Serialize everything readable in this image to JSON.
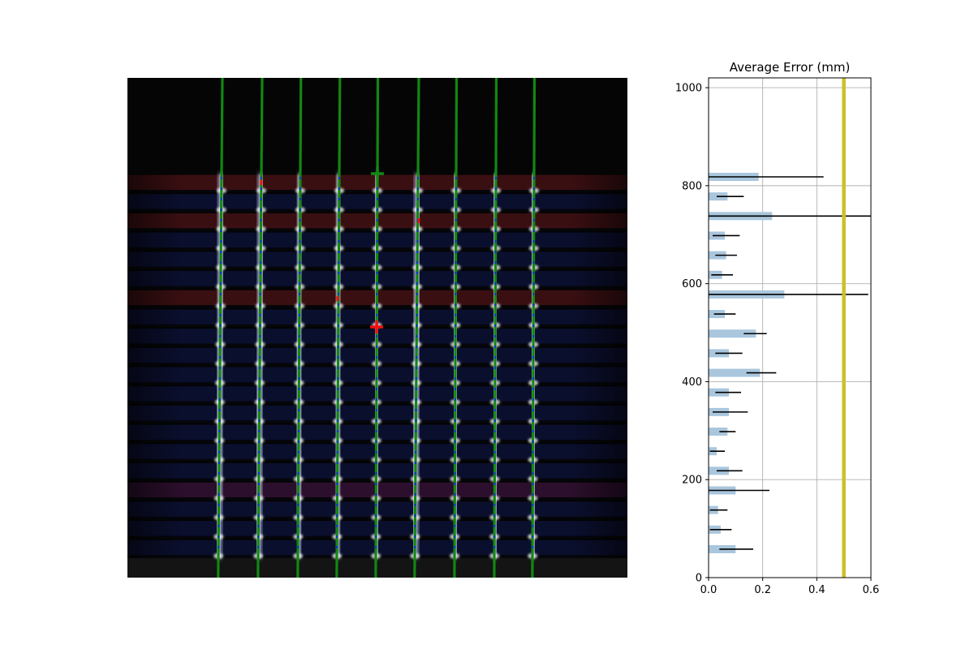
{
  "chart_data": [
    {
      "type": "image",
      "description_colors": {
        "background": "#000000",
        "grid_line_glow": "#e8ecff",
        "fit_line": "#118811",
        "dash_line": "#1133cc",
        "marker_red": "#ee1111",
        "marker_green": "#118811",
        "row_band_red": "#3a0f12",
        "row_band_blue": "#0b0f2e",
        "row_band_purple": "#2c0f2c"
      }
    },
    {
      "type": "bar",
      "orientation": "horizontal",
      "title": "Average Error (mm)",
      "xlim": [
        0,
        0.6
      ],
      "ylim": [
        0,
        1020
      ],
      "xticks": [
        "0.0",
        "0.2",
        "0.4",
        "0.6"
      ],
      "xtick_values": [
        0,
        0.2,
        0.4,
        0.6
      ],
      "yticks": [
        "0",
        "200",
        "400",
        "600",
        "800",
        "1000"
      ],
      "ytick_values": [
        0,
        200,
        400,
        600,
        800,
        1000
      ],
      "grid": true,
      "bar_color": "#a9c6dd",
      "error_color": "#000000",
      "threshold": {
        "value": 0.5,
        "color": "#c9c12a"
      },
      "bars": [
        {
          "y": 58,
          "value": 0.1,
          "err_lo": 0.04,
          "err_hi": 0.165
        },
        {
          "y": 98,
          "value": 0.045,
          "err_lo": 0.005,
          "err_hi": 0.085
        },
        {
          "y": 138,
          "value": 0.035,
          "err_lo": 0.005,
          "err_hi": 0.07
        },
        {
          "y": 178,
          "value": 0.1,
          "err_lo": 0.0,
          "err_hi": 0.225
        },
        {
          "y": 218,
          "value": 0.075,
          "err_lo": 0.03,
          "err_hi": 0.125
        },
        {
          "y": 258,
          "value": 0.03,
          "err_lo": 0.005,
          "err_hi": 0.06
        },
        {
          "y": 298,
          "value": 0.07,
          "err_lo": 0.04,
          "err_hi": 0.1
        },
        {
          "y": 338,
          "value": 0.075,
          "err_lo": 0.015,
          "err_hi": 0.145
        },
        {
          "y": 378,
          "value": 0.075,
          "err_lo": 0.025,
          "err_hi": 0.12
        },
        {
          "y": 418,
          "value": 0.19,
          "err_lo": 0.14,
          "err_hi": 0.25
        },
        {
          "y": 458,
          "value": 0.075,
          "err_lo": 0.025,
          "err_hi": 0.125
        },
        {
          "y": 498,
          "value": 0.175,
          "err_lo": 0.13,
          "err_hi": 0.215
        },
        {
          "y": 538,
          "value": 0.06,
          "err_lo": 0.02,
          "err_hi": 0.1
        },
        {
          "y": 578,
          "value": 0.28,
          "err_lo": 0.0,
          "err_hi": 0.59
        },
        {
          "y": 618,
          "value": 0.05,
          "err_lo": 0.01,
          "err_hi": 0.09
        },
        {
          "y": 658,
          "value": 0.065,
          "err_lo": 0.025,
          "err_hi": 0.105
        },
        {
          "y": 698,
          "value": 0.06,
          "err_lo": 0.015,
          "err_hi": 0.115
        },
        {
          "y": 738,
          "value": 0.235,
          "err_lo": 0.0,
          "err_hi": 0.6
        },
        {
          "y": 778,
          "value": 0.07,
          "err_lo": 0.03,
          "err_hi": 0.13
        },
        {
          "y": 818,
          "value": 0.185,
          "err_lo": 0.0,
          "err_hi": 0.425
        }
      ]
    }
  ]
}
